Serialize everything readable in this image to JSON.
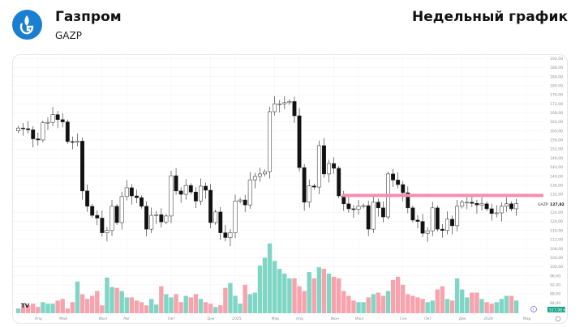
{
  "header": {
    "company": "Газпром",
    "ticker": "GAZP",
    "title": "Недельный график"
  },
  "colors": {
    "up_volume": "#7fd6c5",
    "down_volume": "#f7a3ae",
    "level_line": "#f48fb1",
    "logo": "#1a7fd1",
    "volume_badge": "#1aa88a"
  },
  "chart_data": {
    "type": "candlestick",
    "symbol": "GAZP",
    "interval": "weekly",
    "last_price_label": "127,82",
    "volume_label": "517,98 K",
    "ylim": [
      84,
      192
    ],
    "y_ticks": [
      "192,00",
      "188,00",
      "184,00",
      "180,00",
      "176,00",
      "172,00",
      "168,00",
      "164,00",
      "160,00",
      "156,00",
      "152,00",
      "148,00",
      "144,00",
      "140,00",
      "136,00",
      "132,00",
      "124,00",
      "120,00",
      "116,00",
      "112,00",
      "108,00",
      "104,00",
      "100,00",
      "96,00",
      "92,00",
      "88,00",
      "84,00"
    ],
    "y_tick_values": [
      192,
      188,
      184,
      180,
      176,
      172,
      168,
      164,
      160,
      156,
      152,
      148,
      144,
      140,
      136,
      132,
      124,
      120,
      116,
      112,
      108,
      104,
      100,
      96,
      92,
      88,
      84
    ],
    "x_ticks": [
      {
        "label": "Апр",
        "index": 4
      },
      {
        "label": "Май",
        "index": 9
      },
      {
        "label": "Июл",
        "index": 17
      },
      {
        "label": "Авг",
        "index": 22
      },
      {
        "label": "Окт",
        "index": 31
      },
      {
        "label": "Дек",
        "index": 39
      },
      {
        "label": "2025",
        "index": 44
      },
      {
        "label": "Мар",
        "index": 52
      },
      {
        "label": "Апр",
        "index": 57
      },
      {
        "label": "Июн",
        "index": 64
      },
      {
        "label": "Июл",
        "index": 69
      },
      {
        "label": "Сен",
        "index": 78
      },
      {
        "label": "Окт",
        "index": 83
      },
      {
        "label": "Дек",
        "index": 90
      },
      {
        "label": "2026",
        "index": 95
      },
      {
        "label": "Мар",
        "index": 103
      }
    ],
    "level_line": 131.5,
    "first_open": 160,
    "closes": [
      161.3,
      161,
      160.5,
      156.5,
      156,
      163.6,
      163.8,
      167.2,
      165,
      164,
      155.3,
      155,
      155.5,
      133.5,
      126.7,
      122.7,
      121.5,
      115,
      116,
      126.7,
      119.5,
      131,
      134.9,
      131.3,
      130.5,
      126.7,
      116.6,
      122.7,
      123,
      119.8,
      122.4,
      140.2,
      133.5,
      132,
      135.9,
      133,
      129,
      135.6,
      133.8,
      119.5,
      124.2,
      115,
      112.9,
      115,
      129,
      129.5,
      127.3,
      138.4,
      139.9,
      141,
      142,
      168.5,
      172,
      172,
      172.5,
      173,
      166.7,
      143.8,
      128.5,
      135.7,
      135.2,
      153.5,
      141,
      145.6,
      143.5,
      131.3,
      127.8,
      125.6,
      125.4,
      126.7,
      127,
      116.6,
      128.5,
      126,
      122,
      141,
      138.3,
      136.3,
      132.7,
      126,
      120.6,
      120,
      114.8,
      115.9,
      126,
      116.6,
      116,
      121,
      118.1,
      126.7,
      128.5,
      128.5,
      128,
      127.3,
      127.8,
      125.6,
      123.5,
      123.8,
      126.7,
      127.8,
      125.6,
      127.82
    ],
    "volumes": [
      6,
      10,
      10,
      12,
      8,
      14,
      12,
      12,
      16,
      18,
      6,
      14,
      40,
      24,
      18,
      22,
      28,
      10,
      45,
      33,
      32,
      28,
      20,
      20,
      16,
      14,
      10,
      18,
      11,
      34,
      24,
      20,
      24,
      14,
      22,
      20,
      24,
      18,
      14,
      12,
      8,
      10,
      32,
      38,
      22,
      12,
      36,
      24,
      26,
      60,
      70,
      88,
      66,
      56,
      50,
      44,
      44,
      34,
      28,
      52,
      44,
      58,
      56,
      50,
      46,
      44,
      28,
      22,
      16,
      14,
      14,
      20,
      24,
      26,
      22,
      28,
      42,
      46,
      36,
      24,
      22,
      20,
      18,
      14,
      16,
      30,
      34,
      18,
      16,
      44,
      30,
      20,
      26,
      26,
      18,
      14,
      12,
      14,
      18,
      22,
      22,
      16
    ]
  }
}
